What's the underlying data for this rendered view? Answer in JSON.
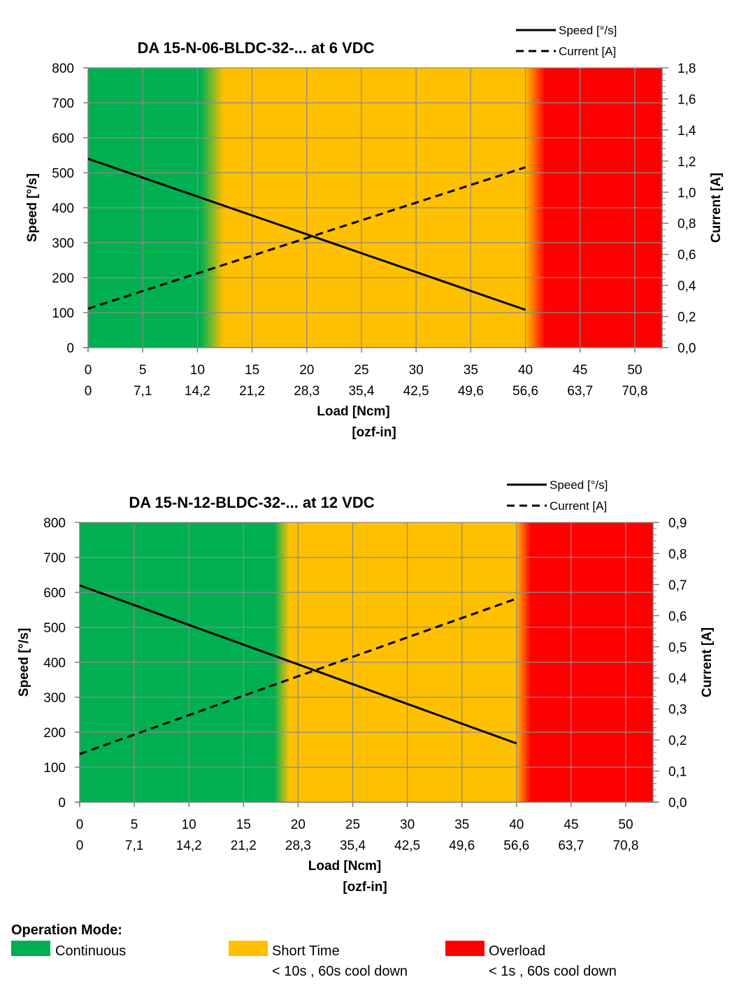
{
  "chart_data": [
    {
      "type": "line",
      "title": "DA 15-N-06-BLDC-32-... at 6 VDC",
      "xlabel": "Load [Ncm]",
      "xlabel2": "[ozf-in]",
      "ylabel": "Speed [°/s]",
      "y2label": "Current [A]",
      "xlim": [
        0,
        52.5
      ],
      "ylim": [
        0,
        800
      ],
      "y2lim": [
        0,
        1.8
      ],
      "x_ticks": [
        "0",
        "5",
        "10",
        "15",
        "20",
        "25",
        "30",
        "35",
        "40",
        "45",
        "50"
      ],
      "x2_ticks": [
        "0",
        "7,1",
        "14,2",
        "21,2",
        "28,3",
        "35,4",
        "42,5",
        "49,6",
        "56,6",
        "63,7",
        "70,8"
      ],
      "y_ticks": [
        "0",
        "100",
        "200",
        "300",
        "400",
        "500",
        "600",
        "700",
        "800"
      ],
      "y2_ticks": [
        "0,0",
        "0,2",
        "0,4",
        "0,6",
        "0,8",
        "1,0",
        "1,2",
        "1,4",
        "1,6",
        "1,8"
      ],
      "grid": true,
      "legend_position": "top-right",
      "zones": [
        {
          "mode": "continuous",
          "from": 0,
          "to": 10.3,
          "color": "#00b050"
        },
        {
          "mode": "short_time",
          "from": 12.4,
          "to": 40.0,
          "color": "#ffc000"
        },
        {
          "mode": "overload",
          "from": 41.8,
          "to": 52.5,
          "color": "#ff0000"
        }
      ],
      "series": [
        {
          "name": "Speed [°/s]",
          "axis": "left",
          "style": "solid",
          "x": [
            0,
            40
          ],
          "y": [
            540,
            108
          ]
        },
        {
          "name": "Current [A]",
          "axis": "right",
          "style": "dashed",
          "x": [
            0,
            40
          ],
          "y": [
            0.25,
            1.16
          ]
        }
      ]
    },
    {
      "type": "line",
      "title": "DA 15-N-12-BLDC-32-... at 12 VDC",
      "xlabel": "Load [Ncm]",
      "xlabel2": "[ozf-in]",
      "ylabel": "Speed [°/s]",
      "y2label": "Current [A]",
      "xlim": [
        0,
        52.5
      ],
      "ylim": [
        0,
        800
      ],
      "y2lim": [
        0,
        0.9
      ],
      "x_ticks": [
        "0",
        "5",
        "10",
        "15",
        "20",
        "25",
        "30",
        "35",
        "40",
        "45",
        "50"
      ],
      "x2_ticks": [
        "0",
        "7,1",
        "14,2",
        "21,2",
        "28,3",
        "35,4",
        "42,5",
        "49,6",
        "56,6",
        "63,7",
        "70,8"
      ],
      "y_ticks": [
        "0",
        "100",
        "200",
        "300",
        "400",
        "500",
        "600",
        "700",
        "800"
      ],
      "y2_ticks": [
        "0,0",
        "0,1",
        "0,2",
        "0,3",
        "0,4",
        "0,5",
        "0,6",
        "0,7",
        "0,8",
        "0,9"
      ],
      "grid": true,
      "legend_position": "top-right",
      "zones": [
        {
          "mode": "continuous",
          "from": 0,
          "to": 17.8,
          "color": "#00b050"
        },
        {
          "mode": "short_time",
          "from": 19.2,
          "to": 39.9,
          "color": "#ffc000"
        },
        {
          "mode": "overload",
          "from": 41.3,
          "to": 52.5,
          "color": "#ff0000"
        }
      ],
      "series": [
        {
          "name": "Speed [°/s]",
          "axis": "left",
          "style": "solid",
          "x": [
            0,
            40
          ],
          "y": [
            620,
            168
          ]
        },
        {
          "name": "Current [A]",
          "axis": "right",
          "style": "dashed",
          "x": [
            0,
            40
          ],
          "y": [
            0.155,
            0.655
          ]
        }
      ]
    }
  ],
  "operation_mode": {
    "title": "Operation Mode:",
    "modes": [
      {
        "label": "Continuous",
        "sub": "",
        "color": "#00b050"
      },
      {
        "label": "Short Time",
        "sub": "< 10s , 60s cool down",
        "color": "#ffc000"
      },
      {
        "label": "Overload",
        "sub": "< 1s , 60s cool down",
        "color": "#ff0000"
      }
    ]
  }
}
